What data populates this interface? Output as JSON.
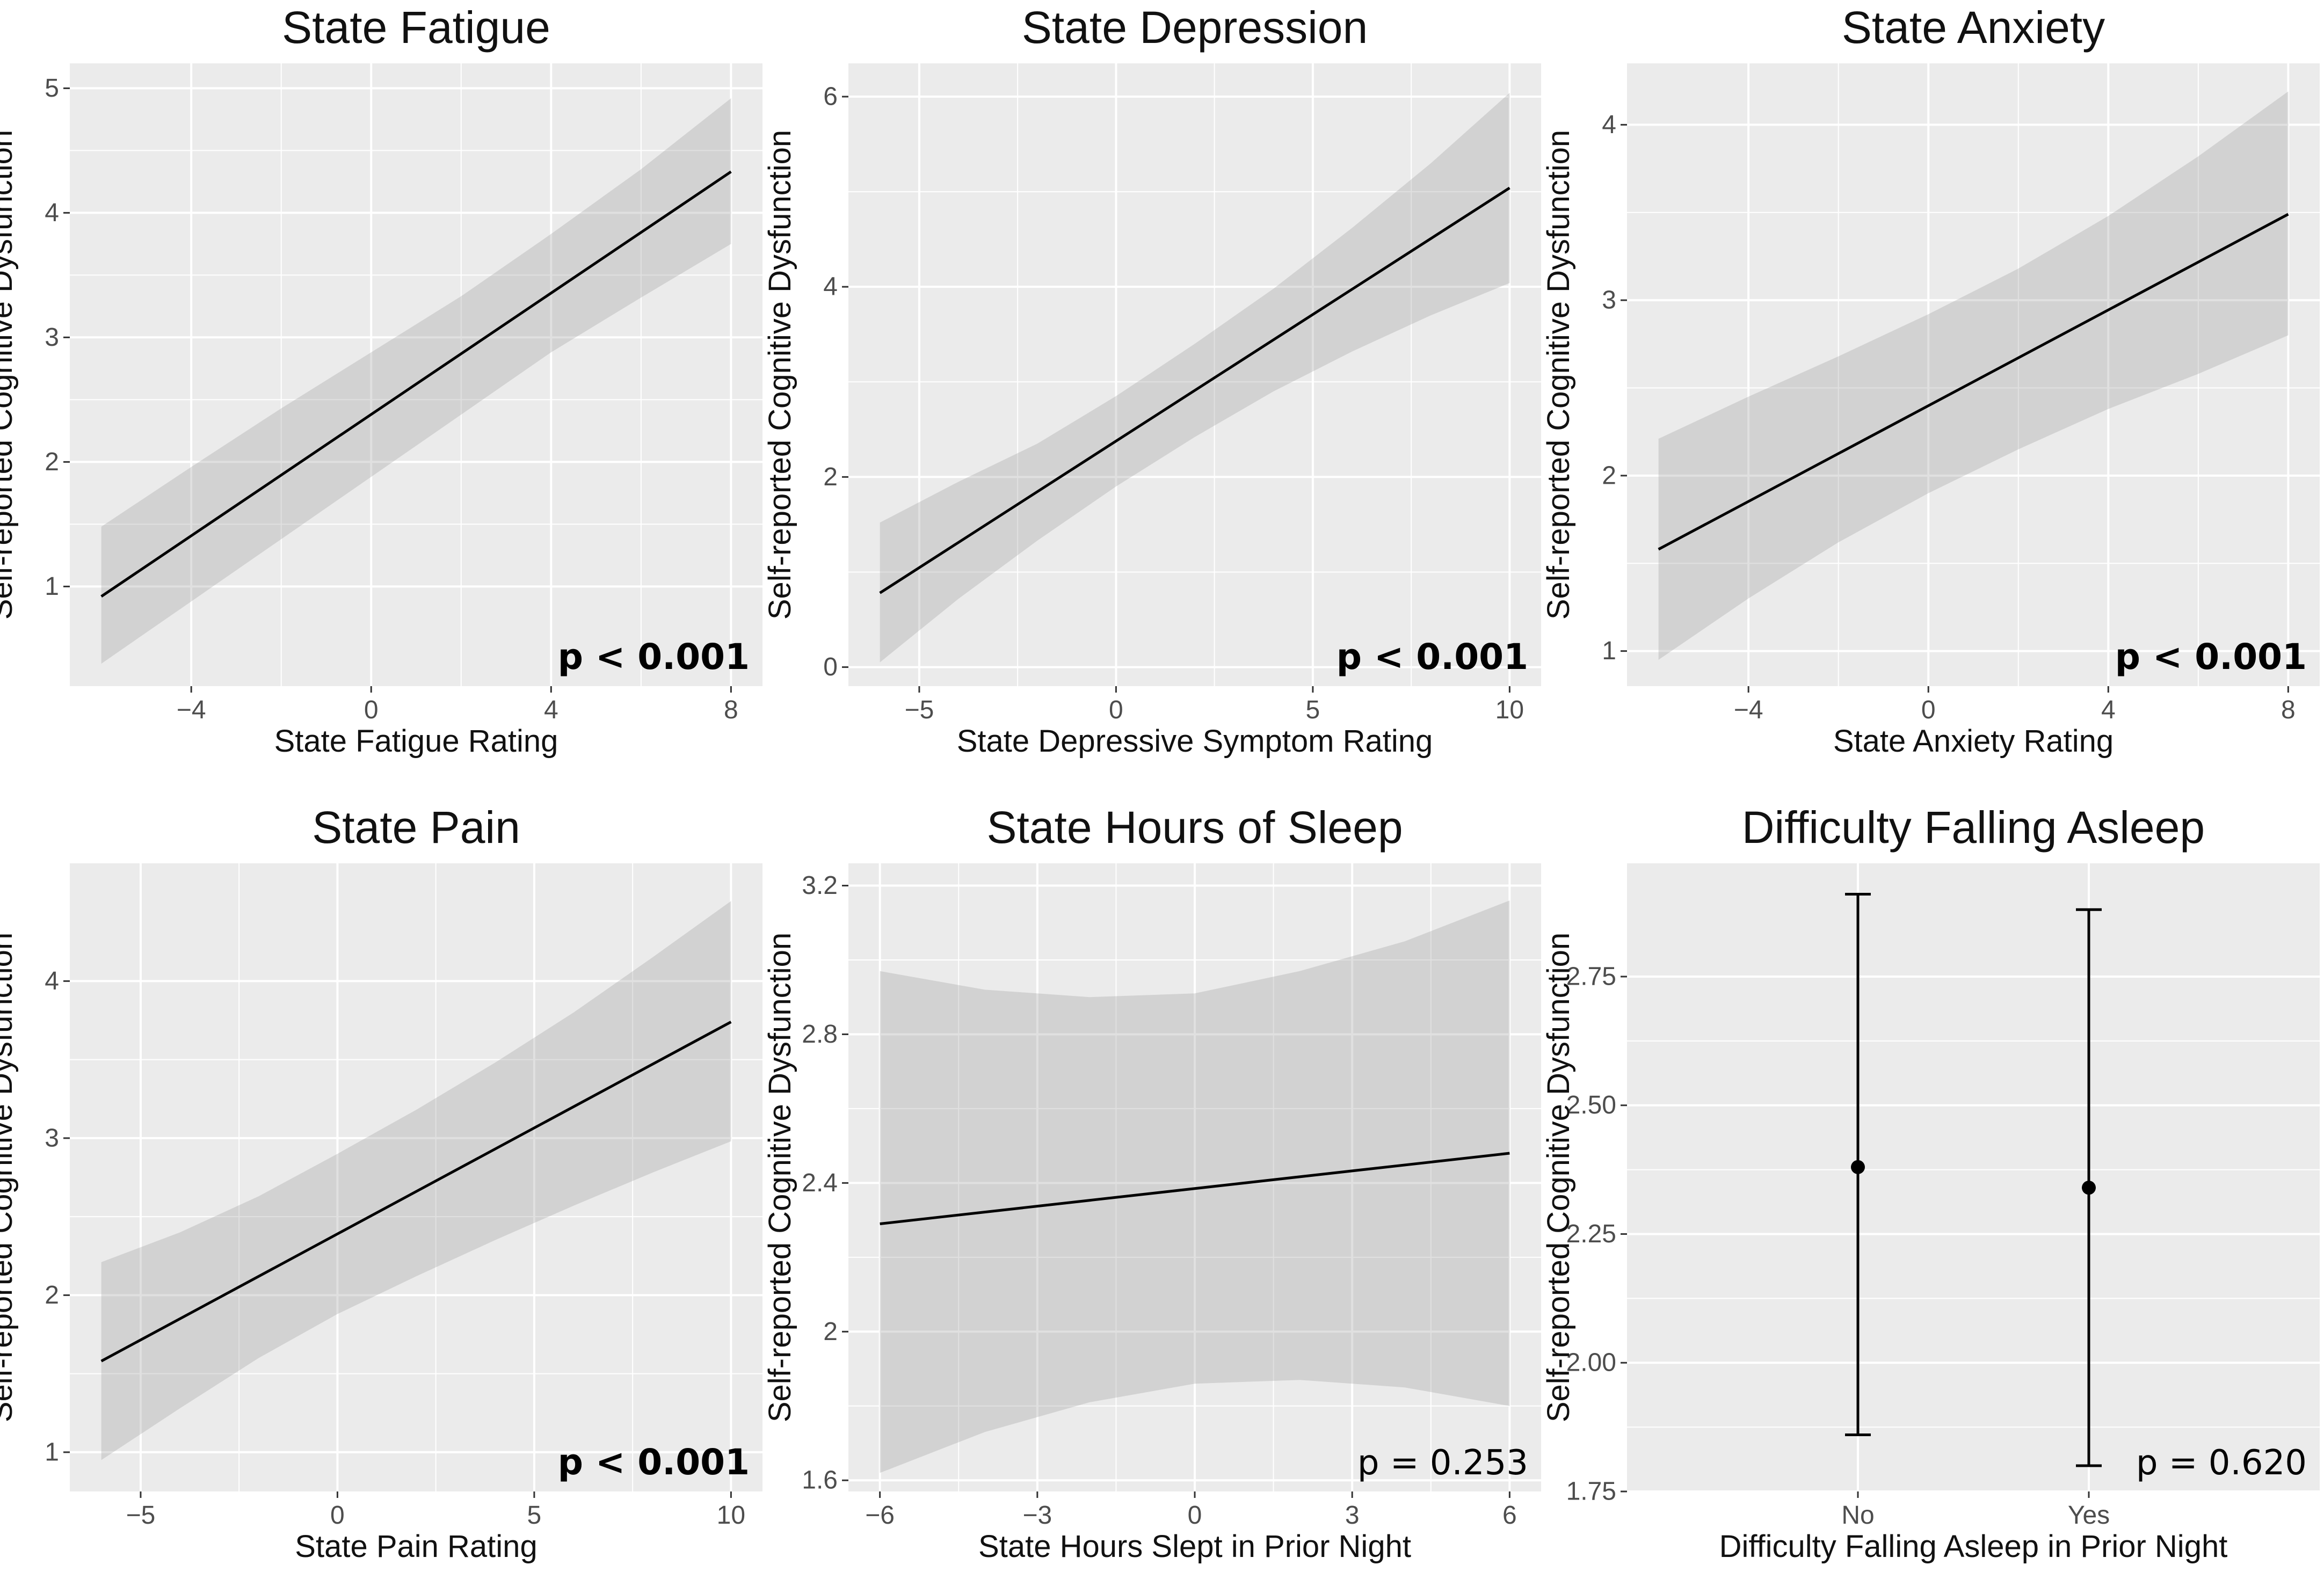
{
  "chart_data": [
    {
      "type": "line",
      "title": "State Fatigue",
      "xlabel": "State Fatigue Rating",
      "ylabel": "Self-reported Cognitive Dysfunction",
      "xlim": [
        -6.7,
        8.7
      ],
      "ylim": [
        0.2,
        5.2
      ],
      "xticks": [
        -4,
        0,
        4,
        8
      ],
      "yticks": [
        1,
        2,
        3,
        4,
        5
      ],
      "x": [
        -6,
        8
      ],
      "y": [
        0.92,
        4.33
      ],
      "ci_x": [
        -6,
        -4,
        -2,
        0,
        2,
        4,
        6,
        8
      ],
      "ci_lower": [
        0.38,
        0.88,
        1.38,
        1.88,
        2.38,
        2.88,
        3.32,
        3.75
      ],
      "ci_upper": [
        1.48,
        1.96,
        2.43,
        2.88,
        3.33,
        3.83,
        4.35,
        4.92
      ],
      "annotation": "p < 0.001",
      "annotation_bold": true
    },
    {
      "type": "line",
      "title": "State Depression",
      "xlabel": "State Depressive Symptom Rating",
      "ylabel": "Self-reported Cognitive Dysfunction",
      "xlim": [
        -6.8,
        10.8
      ],
      "ylim": [
        -0.2,
        6.35
      ],
      "xticks": [
        -5,
        0,
        5,
        10
      ],
      "yticks": [
        0,
        2,
        4,
        6
      ],
      "x": [
        -6,
        10
      ],
      "y": [
        0.78,
        5.04
      ],
      "ci_x": [
        -6,
        -4,
        -2,
        0,
        2,
        4,
        6,
        8,
        10
      ],
      "ci_lower": [
        0.05,
        0.72,
        1.33,
        1.9,
        2.42,
        2.9,
        3.32,
        3.7,
        4.04
      ],
      "ci_upper": [
        1.52,
        1.95,
        2.35,
        2.85,
        3.4,
        3.98,
        4.62,
        5.3,
        6.04
      ],
      "annotation": "p < 0.001",
      "annotation_bold": true
    },
    {
      "type": "line",
      "title": "State Anxiety",
      "xlabel": "State Anxiety Rating",
      "ylabel": "Self-reported Cognitive Dysfunction",
      "xlim": [
        -6.7,
        8.7
      ],
      "ylim": [
        0.8,
        4.35
      ],
      "xticks": [
        -4,
        0,
        4,
        8
      ],
      "yticks": [
        1,
        2,
        3,
        4
      ],
      "x": [
        -6,
        8
      ],
      "y": [
        1.58,
        3.49
      ],
      "ci_x": [
        -6,
        -4,
        -2,
        0,
        2,
        4,
        6,
        8
      ],
      "ci_lower": [
        0.95,
        1.3,
        1.62,
        1.9,
        2.15,
        2.38,
        2.58,
        2.8
      ],
      "ci_upper": [
        2.21,
        2.45,
        2.68,
        2.92,
        3.18,
        3.48,
        3.82,
        4.19
      ],
      "annotation": "p < 0.001",
      "annotation_bold": true
    },
    {
      "type": "line",
      "title": "State Pain",
      "xlabel": "State Pain Rating",
      "ylabel": "Self-reported Cognitive Dysfunction",
      "xlim": [
        -6.8,
        10.8
      ],
      "ylim": [
        0.75,
        4.75
      ],
      "xticks": [
        -5,
        0,
        5,
        10
      ],
      "yticks": [
        1,
        2,
        3,
        4
      ],
      "x": [
        -6,
        10
      ],
      "y": [
        1.58,
        3.74
      ],
      "ci_x": [
        -6,
        -4,
        -2,
        0,
        2,
        4,
        6,
        8,
        10
      ],
      "ci_lower": [
        0.95,
        1.28,
        1.6,
        1.88,
        2.12,
        2.35,
        2.57,
        2.78,
        2.98
      ],
      "ci_upper": [
        2.21,
        2.4,
        2.63,
        2.9,
        3.18,
        3.48,
        3.8,
        4.15,
        4.51
      ],
      "annotation": "p < 0.001",
      "annotation_bold": true
    },
    {
      "type": "line",
      "title": "State Hours of Sleep",
      "xlabel": "State Hours Slept in Prior Night",
      "ylabel": "Self-reported Cognitive Dysfunction",
      "xlim": [
        -6.6,
        6.6
      ],
      "ylim": [
        1.57,
        3.26
      ],
      "xticks": [
        -6,
        -3,
        0,
        3,
        6
      ],
      "yticks": [
        1.6,
        2.0,
        2.4,
        2.8,
        3.2
      ],
      "x": [
        -6,
        6
      ],
      "y": [
        2.29,
        2.48
      ],
      "ci_x": [
        -6,
        -4,
        -2,
        0,
        2,
        4,
        6
      ],
      "ci_lower": [
        1.62,
        1.73,
        1.81,
        1.86,
        1.87,
        1.85,
        1.8
      ],
      "ci_upper": [
        2.97,
        2.92,
        2.9,
        2.91,
        2.97,
        3.05,
        3.16
      ],
      "annotation": "p = 0.253",
      "annotation_bold": false
    },
    {
      "type": "errorbar",
      "title": "Difficulty Falling Asleep",
      "xlabel": "Difficulty Falling Asleep in Prior Night",
      "ylabel": "Self-reported Cognitive Dysfunction",
      "ylim": [
        1.75,
        2.97
      ],
      "categories": [
        "No",
        "Yes"
      ],
      "yticks": [
        1.75,
        2.0,
        2.25,
        2.5,
        2.75
      ],
      "ytick_labels": [
        "1.75",
        "2.00",
        "2.25",
        "2.50",
        "2.75"
      ],
      "values": [
        2.38,
        2.34
      ],
      "lower": [
        1.86,
        1.8
      ],
      "upper": [
        2.91,
        2.88
      ],
      "annotation": "p = 0.620",
      "annotation_bold": false
    }
  ]
}
